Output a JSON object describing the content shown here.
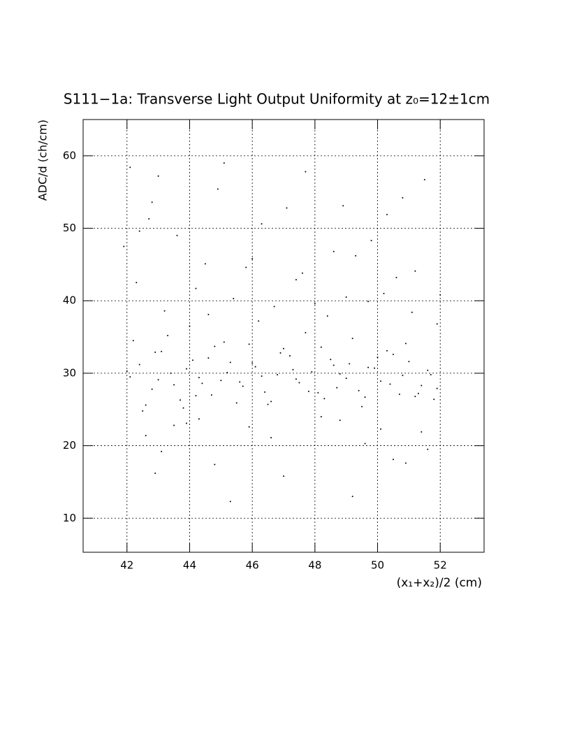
{
  "chart_data": {
    "type": "scatter",
    "title": "S111−1a: Transverse Light Output Uniformity at z₀=12±1cm",
    "x_label": "(x₁+x₂)/2 (cm)",
    "y_label": "ADC/d (ch/cm)",
    "xlim": [
      40.6,
      53.4
    ],
    "ylim": [
      5.3,
      65
    ],
    "xticks": [
      42,
      44,
      46,
      48,
      50,
      52
    ],
    "yticks": [
      10,
      20,
      30,
      40,
      50,
      60
    ],
    "grid": true,
    "color": "#000000",
    "x": [
      42.1,
      42.4,
      42.8,
      43.1,
      43.5,
      43.9,
      44.2,
      44.6,
      45.0,
      45.3,
      45.7,
      46.1,
      46.4,
      46.8,
      47.2,
      47.5,
      47.9,
      48.3,
      48.6,
      49.0,
      49.4,
      49.7,
      50.1,
      50.5,
      50.8,
      51.2,
      51.6,
      51.9,
      42.2,
      42.6,
      43.0,
      43.3,
      43.7,
      44.1,
      44.4,
      44.8,
      45.2,
      45.5,
      45.9,
      46.3,
      46.6,
      47.0,
      47.4,
      47.7,
      48.1,
      48.5,
      48.8,
      49.2,
      49.6,
      49.9,
      50.3,
      50.7,
      51.0,
      51.4,
      51.8,
      42.0,
      42.5,
      42.9,
      43.4,
      43.8,
      44.3,
      44.7,
      45.1,
      45.6,
      46.0,
      46.5,
      46.9,
      47.3,
      47.8,
      48.2,
      48.7,
      49.1,
      49.5,
      50.0,
      50.4,
      50.9,
      51.3,
      51.7,
      44.0,
      46.2,
      42.3,
      43.2,
      44.5,
      45.4,
      46.7,
      47.6,
      48.4,
      49.3,
      50.2,
      51.1,
      41.9,
      42.7,
      43.6,
      44.9,
      45.8,
      47.1,
      48.0,
      48.9,
      49.8,
      50.6,
      51.5,
      52.0,
      42.1,
      43.0,
      44.2,
      45.1,
      46.3,
      47.4,
      48.6,
      49.7,
      50.8,
      51.9,
      42.4,
      44.6,
      46.0,
      47.7,
      49.0,
      50.3,
      51.2,
      42.8,
      42.6,
      43.1,
      43.9,
      44.8,
      45.9,
      47.0,
      48.8,
      49.6,
      50.5,
      51.4,
      42.9,
      43.5,
      44.3,
      45.3,
      46.6,
      48.2,
      49.2,
      50.1,
      50.9,
      51.6
    ],
    "y": [
      29.5,
      31.2,
      27.8,
      33.0,
      28.4,
      30.6,
      26.9,
      32.1,
      29.0,
      31.5,
      28.2,
      30.9,
      27.4,
      29.8,
      32.4,
      28.7,
      30.2,
      26.5,
      31.1,
      29.3,
      27.6,
      30.8,
      28.9,
      32.6,
      29.7,
      26.8,
      30.4,
      27.9,
      34.5,
      25.6,
      29.1,
      35.2,
      26.3,
      31.8,
      28.6,
      33.7,
      30.1,
      25.9,
      34.0,
      29.6,
      26.1,
      33.4,
      29.2,
      35.6,
      27.3,
      31.9,
      29.9,
      34.8,
      26.7,
      30.7,
      33.1,
      27.1,
      31.6,
      28.3,
      26.4,
      30.3,
      24.8,
      32.9,
      30.0,
      25.2,
      29.4,
      27.0,
      34.3,
      28.8,
      31.4,
      25.7,
      32.8,
      30.5,
      27.5,
      33.6,
      28.0,
      31.3,
      25.4,
      32.2,
      28.5,
      34.1,
      27.2,
      29.8,
      36.5,
      37.2,
      42.5,
      38.6,
      45.1,
      40.3,
      39.2,
      43.8,
      37.9,
      46.2,
      41.0,
      38.4,
      47.5,
      51.3,
      49.0,
      55.4,
      44.6,
      52.8,
      39.6,
      53.1,
      48.3,
      43.2,
      56.7,
      40.8,
      58.4,
      57.2,
      41.7,
      59.0,
      50.6,
      42.9,
      46.8,
      39.9,
      54.2,
      36.8,
      49.6,
      38.1,
      45.8,
      57.8,
      40.5,
      51.9,
      44.1,
      53.6,
      21.4,
      19.2,
      23.1,
      17.4,
      22.6,
      15.8,
      23.5,
      20.3,
      18.1,
      21.9,
      16.2,
      22.8,
      23.7,
      12.3,
      21.1,
      24.0,
      13.0,
      22.3,
      17.6,
      19.5
    ]
  }
}
